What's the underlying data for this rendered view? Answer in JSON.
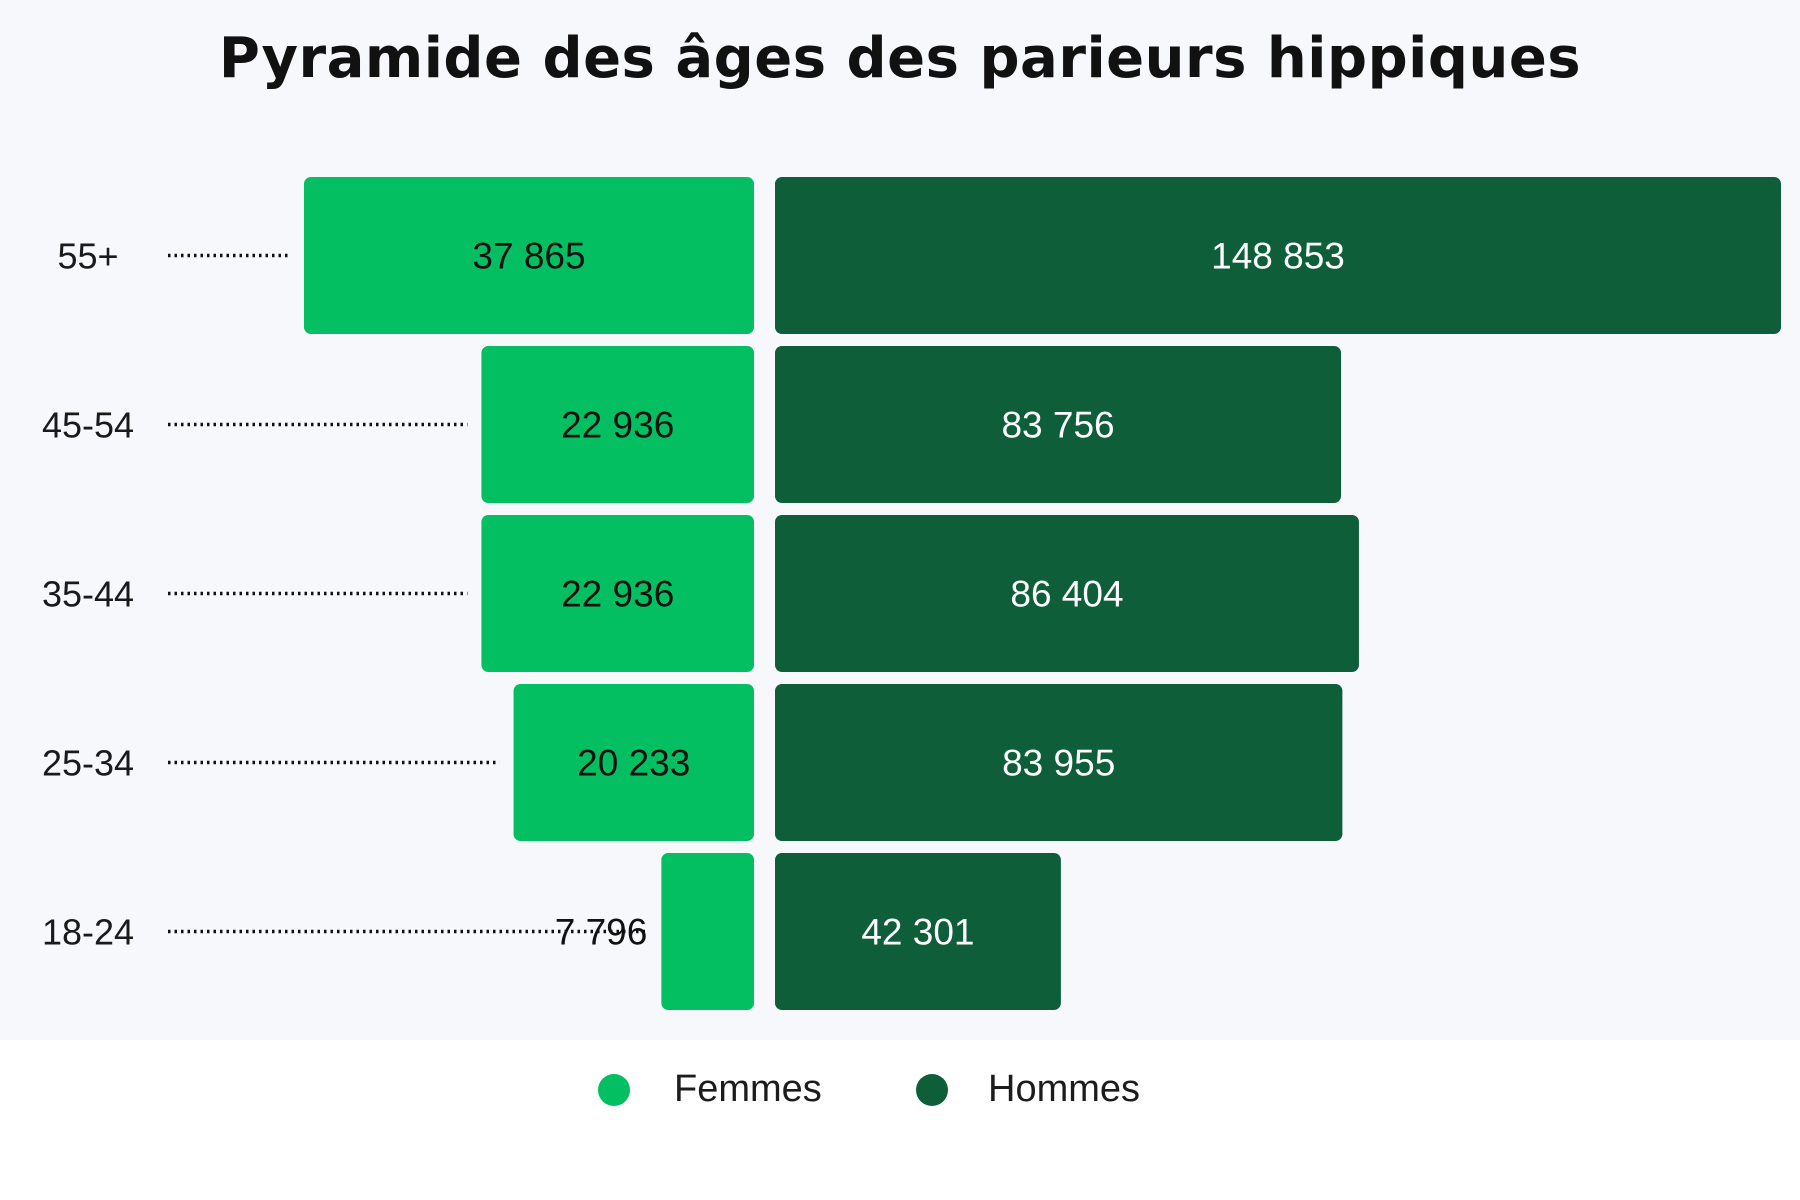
{
  "chart_data": {
    "type": "bar",
    "orientation": "horizontal-pyramid",
    "title": "Pyramide des âges des parieurs hippiques",
    "categories": [
      "55+",
      "45-54",
      "35-44",
      "25-34",
      "18-24"
    ],
    "series": [
      {
        "name": "Femmes",
        "values": [
          37865,
          22936,
          22936,
          20233,
          7796
        ],
        "labels": [
          "37 865",
          "22 936",
          "22 936",
          "20 233",
          "7 796"
        ],
        "color": "#03bf62",
        "side": "left"
      },
      {
        "name": "Hommes",
        "values": [
          148853,
          83756,
          86404,
          83955,
          42301
        ],
        "labels": [
          "148 853",
          "83 756",
          "86 404",
          "83 955",
          "42 301"
        ],
        "color": "#0e5f39",
        "side": "right"
      }
    ],
    "legend_position": "bottom-center",
    "grid": false
  }
}
